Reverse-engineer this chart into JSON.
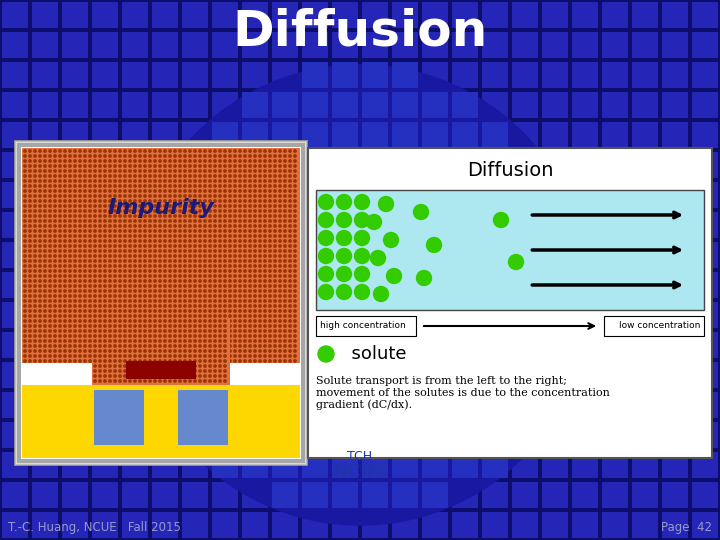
{
  "title": "Diffusion",
  "title_color": "#FFFFFF",
  "title_fontsize": 36,
  "bg_color": "#0d0d6b",
  "footer_left": "T.-C. Huang, NCUE   Fall 2015",
  "footer_right": "Page  42",
  "footer_color": "#9999CC",
  "circle_color": "#1818a0",
  "grid_color": "#2525b8",
  "left_image_bg": "#E07040",
  "dot_color": "#993300",
  "impurity_text_color": "#1a1a7a",
  "right_title": "Diffusion",
  "right_bg": "#FFFFFF",
  "diffusion_box_bg": "#ADE8F0",
  "green_circle_color": "#33CC00",
  "green_edge_color": "#227700",
  "solute_text": "  solute",
  "desc_text": "Solute transport is from the left to the right;\nmovement of the solutes is due to the concentration\ngradient (dC/dx).",
  "high_conc_text": "high concentration",
  "low_conc_text": "low concentration",
  "yellow_color": "#FFD700",
  "blue_sq_color": "#6688CC",
  "dark_red_color": "#8B0000",
  "white_color": "#FFFFFF",
  "ncue_color": "#2233AA",
  "tch_color": "#2233AA"
}
